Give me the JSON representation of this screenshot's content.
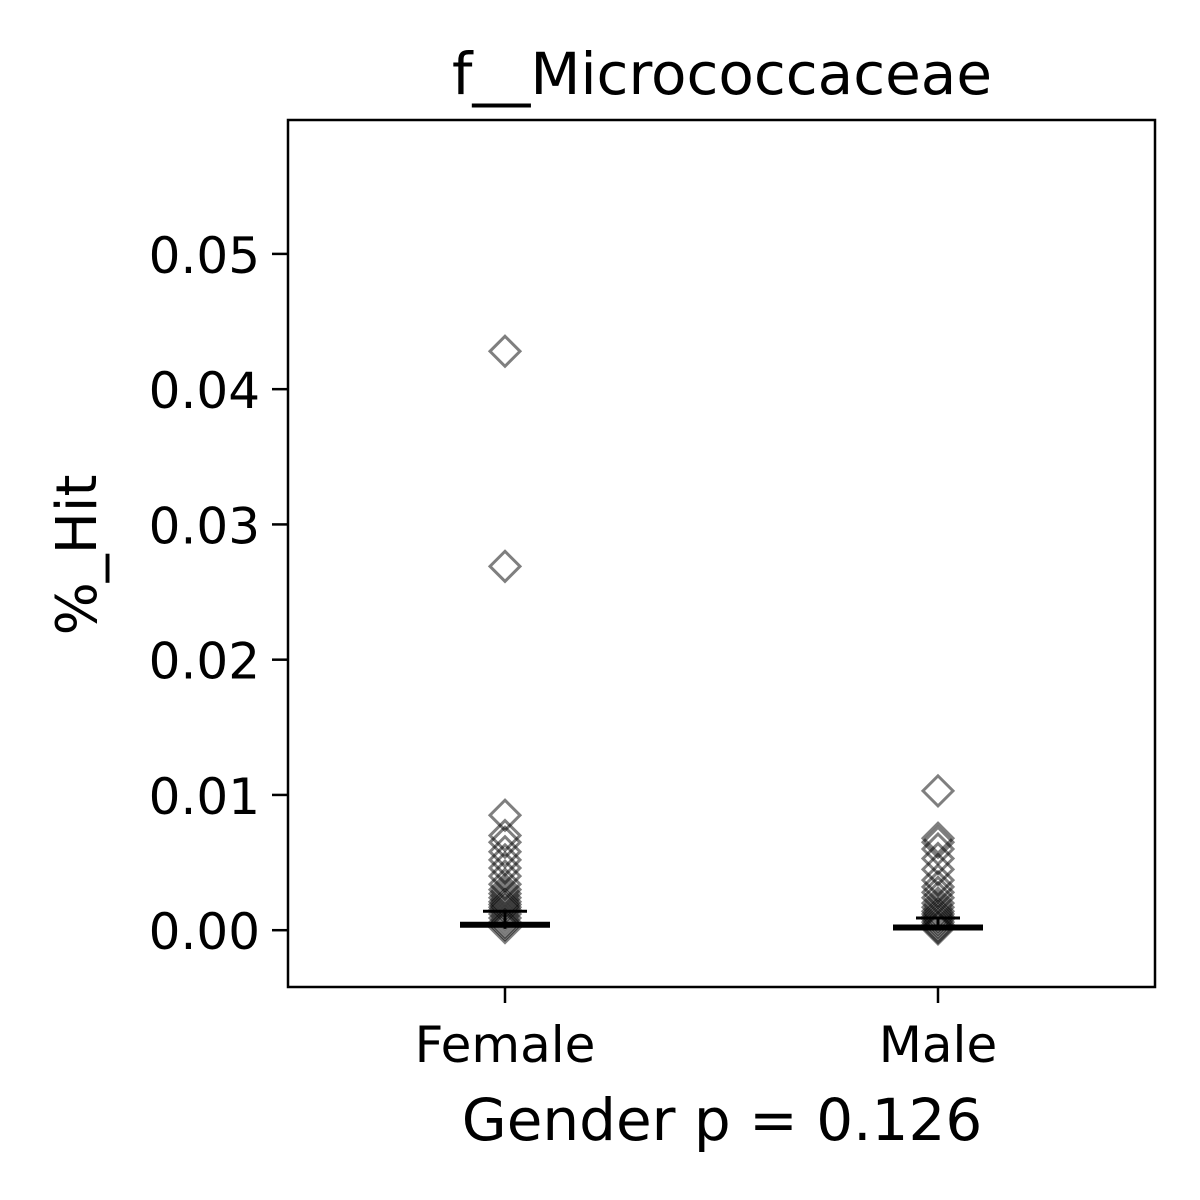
{
  "chart_data": {
    "type": "scatter",
    "title": "f__Micrococcaceae",
    "xlabel": "Gender p = 0.126",
    "ylabel": "%_Hit",
    "categories": [
      "Female",
      "Male"
    ],
    "ylim": [
      -0.0042,
      0.0599
    ],
    "yticks": [
      "0.00",
      "0.01",
      "0.02",
      "0.03",
      "0.04",
      "0.05"
    ],
    "grid": false,
    "legend": "none",
    "marker": "diamond",
    "marker_color": "#000000",
    "marker_alpha": 0.5,
    "series": [
      {
        "category": "Female",
        "values": [
          0.0428,
          0.0269,
          0.0085,
          0.007,
          0.0065,
          0.0058,
          0.0052,
          0.0046,
          0.004,
          0.0034,
          0.003,
          0.0027,
          0.0024,
          0.0021,
          0.0019,
          0.0017,
          0.0015,
          0.0012,
          0.0009,
          0.0006,
          0.0004,
          0.0002
        ],
        "mean": 0.0004,
        "error": [
          0.0001,
          0.0014
        ]
      },
      {
        "category": "Male",
        "values": [
          0.0103,
          0.0068,
          0.0065,
          0.006,
          0.0053,
          0.0045,
          0.0037,
          0.0032,
          0.0028,
          0.0024,
          0.002,
          0.0017,
          0.0014,
          0.0012,
          0.001,
          0.0008,
          0.0006,
          0.0004,
          0.0002,
          0.0001
        ],
        "mean": 0.0002,
        "error": [
          0.0001,
          0.0009
        ]
      }
    ]
  }
}
